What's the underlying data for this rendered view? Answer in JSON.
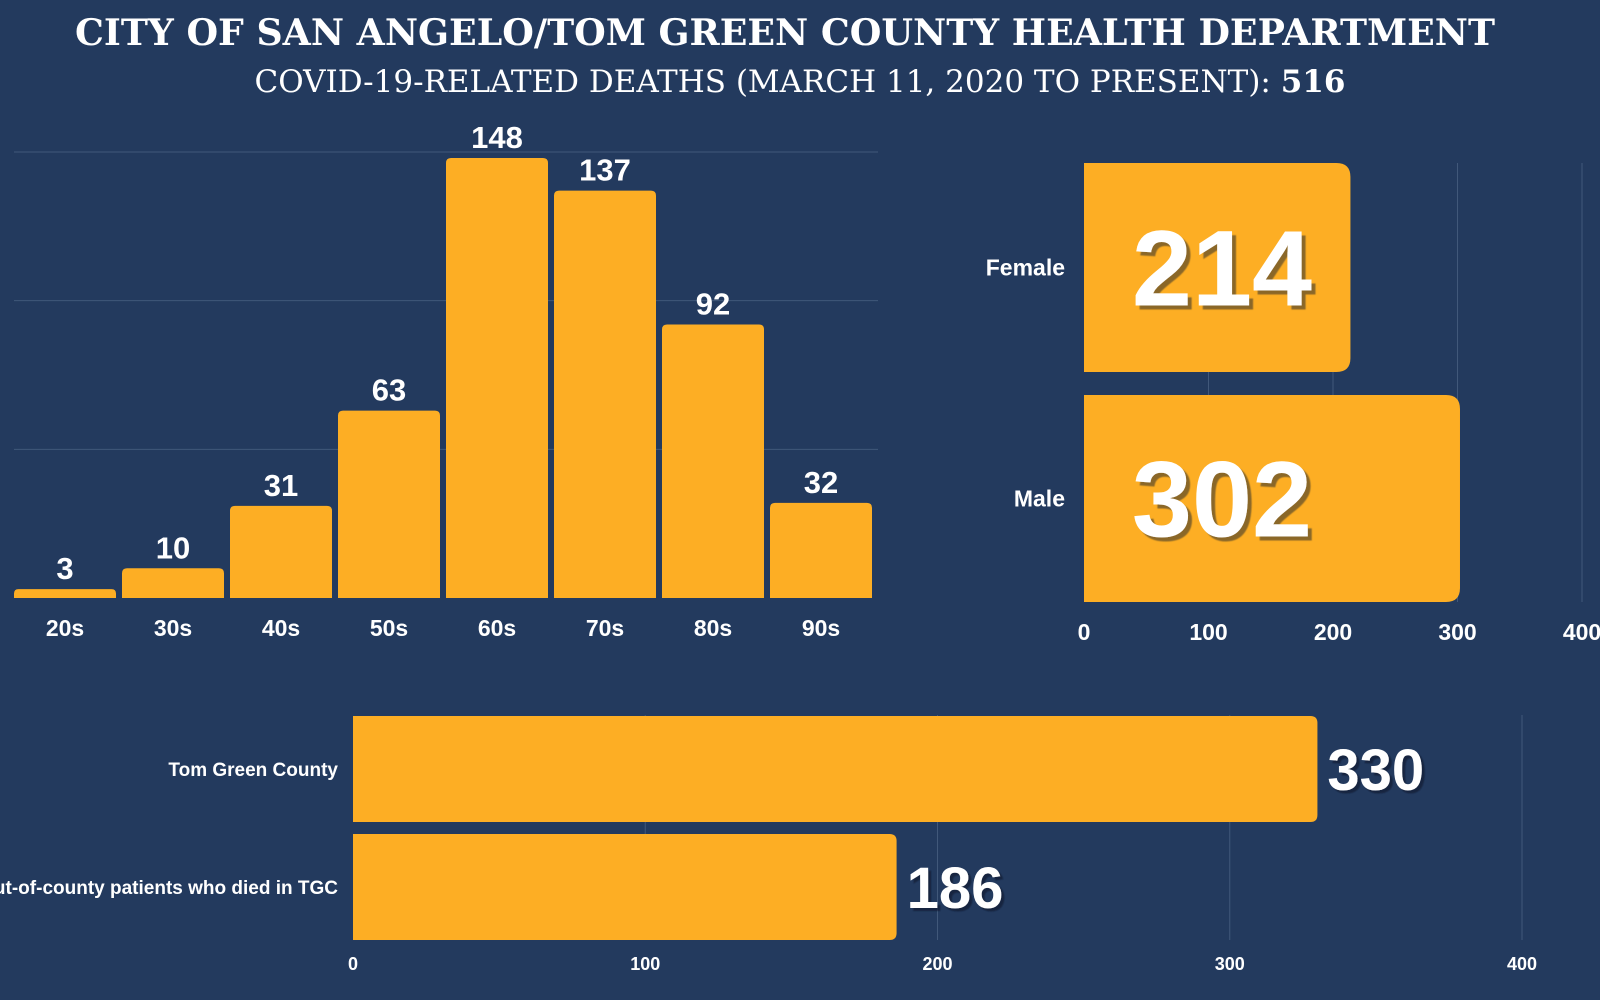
{
  "header": {
    "title": "CITY OF SAN ANGELO/TOM GREEN COUNTY HEALTH DEPARTMENT",
    "subtitle_prefix": "COVID-19-RELATED DEATHS (MARCH 11, 2020 TO PRESENT): ",
    "subtitle_total": "516"
  },
  "colors": {
    "background": "#233a5e",
    "bar": "#fdae24",
    "grid": "#41587a",
    "text": "#ffffff"
  },
  "chart_data": [
    {
      "type": "bar",
      "orientation": "vertical",
      "categories": [
        "20s",
        "30s",
        "40s",
        "50s",
        "60s",
        "70s",
        "80s",
        "90s"
      ],
      "values": [
        3,
        10,
        31,
        63,
        148,
        137,
        92,
        32
      ],
      "data_labels": true,
      "ylim": [
        0,
        150
      ],
      "grid": true
    },
    {
      "type": "bar",
      "orientation": "horizontal",
      "categories": [
        "Female",
        "Male"
      ],
      "values": [
        214,
        302
      ],
      "data_labels": true,
      "xlim": [
        0,
        400
      ],
      "xticks": [
        "0",
        "100",
        "200",
        "300",
        "400"
      ],
      "grid": true
    },
    {
      "type": "bar",
      "orientation": "horizontal",
      "categories": [
        "Tom Green County",
        "Out-of-county patients who died in TGC"
      ],
      "values": [
        330,
        186
      ],
      "data_labels": true,
      "xlim": [
        0,
        400
      ],
      "xticks": [
        "0",
        "100",
        "200",
        "300",
        "400"
      ],
      "grid": true
    }
  ]
}
